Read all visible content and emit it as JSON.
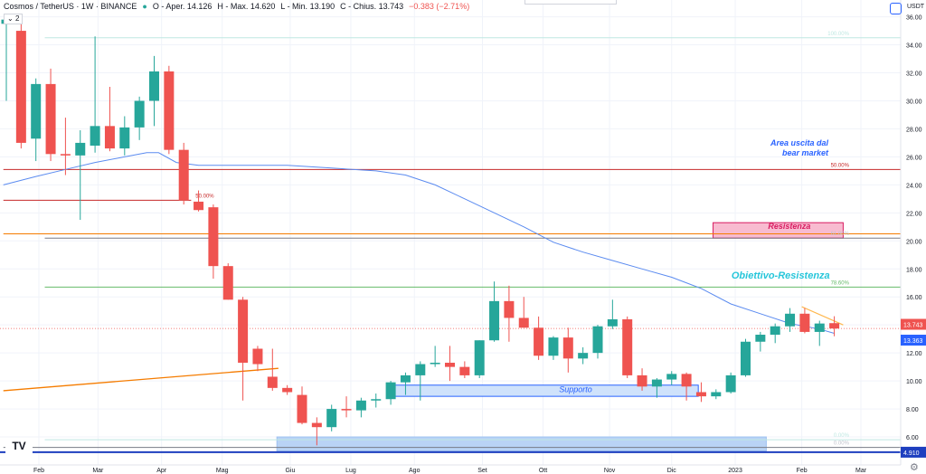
{
  "header": {
    "symbol": "Cosmos / TetherUS · 1W · BINANCE",
    "open": "O - Aper. 14.126",
    "high": "H - Max. 14.620",
    "low": "L - Min. 13.190",
    "close": "C - Chius. 13.743",
    "change": "−0.383 (−2.71%)",
    "indicator_count": "2",
    "logo": "TV",
    "settings_icon": "gear-icon",
    "toggle_icon": "square-icon"
  },
  "colors": {
    "up": "#26a69a",
    "down": "#ef5350",
    "ma": "#5b8bf0",
    "fib_red": "#c62828",
    "fib_green": "#66bb6a",
    "orange": "#f57c00",
    "accent": "#2962ff"
  },
  "chart_data": {
    "type": "candlestick",
    "title": "Cosmos / TetherUS · 1W · BINANCE",
    "ylabel": "USDT",
    "ylim": [
      4.0,
      37.2
    ],
    "y_ticks": [
      36.0,
      34.0,
      32.0,
      30.0,
      28.0,
      26.0,
      24.0,
      22.0,
      20.0,
      18.0,
      16.0,
      14.0,
      12.0,
      10.0,
      8.0,
      6.0
    ],
    "x_ticks": [
      {
        "label": "Feb",
        "week": 2.2
      },
      {
        "label": "Mar",
        "week": 6.2
      },
      {
        "label": "Apr",
        "week": 10.5
      },
      {
        "label": "Mag",
        "week": 14.6
      },
      {
        "label": "Giu",
        "week": 19.2
      },
      {
        "label": "Lug",
        "week": 23.3
      },
      {
        "label": "Ago",
        "week": 27.6
      },
      {
        "label": "Set",
        "week": 32.2
      },
      {
        "label": "Ott",
        "week": 36.3
      },
      {
        "label": "Nov",
        "week": 40.8
      },
      {
        "label": "Dic",
        "week": 45.0
      },
      {
        "label": "2023",
        "week": 49.3
      },
      {
        "label": "Feb",
        "week": 53.8
      },
      {
        "label": "Mar",
        "week": 57.8
      }
    ],
    "candles": [
      {
        "o": 35.5,
        "h": 36.0,
        "l": 30.0,
        "c": 35.8
      },
      {
        "o": 35.0,
        "h": 36.2,
        "l": 26.6,
        "c": 27.0
      },
      {
        "o": 27.3,
        "h": 31.6,
        "l": 25.7,
        "c": 31.2
      },
      {
        "o": 31.2,
        "h": 32.3,
        "l": 25.7,
        "c": 26.2
      },
      {
        "o": 26.2,
        "h": 28.8,
        "l": 24.7,
        "c": 26.1
      },
      {
        "o": 26.1,
        "h": 27.9,
        "l": 21.5,
        "c": 27.0
      },
      {
        "o": 26.8,
        "h": 34.6,
        "l": 26.3,
        "c": 28.2
      },
      {
        "o": 28.2,
        "h": 31.0,
        "l": 26.4,
        "c": 26.6
      },
      {
        "o": 26.6,
        "h": 28.9,
        "l": 26.1,
        "c": 28.1
      },
      {
        "o": 28.1,
        "h": 30.3,
        "l": 27.2,
        "c": 30.0
      },
      {
        "o": 30.0,
        "h": 33.2,
        "l": 28.2,
        "c": 32.1
      },
      {
        "o": 32.1,
        "h": 32.5,
        "l": 26.2,
        "c": 26.5
      },
      {
        "o": 26.5,
        "h": 27.0,
        "l": 22.6,
        "c": 22.9
      },
      {
        "o": 22.8,
        "h": 23.6,
        "l": 22.1,
        "c": 22.2
      },
      {
        "o": 22.4,
        "h": 22.6,
        "l": 17.3,
        "c": 18.2
      },
      {
        "o": 18.2,
        "h": 18.4,
        "l": 15.8,
        "c": 15.8
      },
      {
        "o": 15.8,
        "h": 16.0,
        "l": 8.6,
        "c": 11.3
      },
      {
        "o": 12.3,
        "h": 12.5,
        "l": 10.7,
        "c": 11.2
      },
      {
        "o": 10.3,
        "h": 12.3,
        "l": 9.3,
        "c": 9.5
      },
      {
        "o": 9.5,
        "h": 9.7,
        "l": 9.0,
        "c": 9.2
      },
      {
        "o": 9.0,
        "h": 9.6,
        "l": 6.9,
        "c": 7.0
      },
      {
        "o": 7.0,
        "h": 7.4,
        "l": 5.4,
        "c": 6.7
      },
      {
        "o": 6.7,
        "h": 8.3,
        "l": 6.4,
        "c": 8.0
      },
      {
        "o": 8.0,
        "h": 8.9,
        "l": 7.4,
        "c": 7.9
      },
      {
        "o": 7.9,
        "h": 8.8,
        "l": 7.4,
        "c": 8.6
      },
      {
        "o": 8.6,
        "h": 9.1,
        "l": 8.1,
        "c": 8.7
      },
      {
        "o": 8.7,
        "h": 10.0,
        "l": 8.3,
        "c": 9.9
      },
      {
        "o": 9.9,
        "h": 10.6,
        "l": 9.0,
        "c": 10.4
      },
      {
        "o": 10.4,
        "h": 11.4,
        "l": 8.6,
        "c": 11.2
      },
      {
        "o": 11.2,
        "h": 12.5,
        "l": 11.0,
        "c": 11.3
      },
      {
        "o": 11.3,
        "h": 12.5,
        "l": 10.0,
        "c": 11.0
      },
      {
        "o": 11.0,
        "h": 11.4,
        "l": 10.2,
        "c": 10.4
      },
      {
        "o": 10.4,
        "h": 12.9,
        "l": 10.2,
        "c": 12.9
      },
      {
        "o": 12.9,
        "h": 17.1,
        "l": 12.8,
        "c": 15.7
      },
      {
        "o": 15.7,
        "h": 16.8,
        "l": 12.8,
        "c": 14.5
      },
      {
        "o": 14.5,
        "h": 16.0,
        "l": 13.8,
        "c": 13.8
      },
      {
        "o": 13.8,
        "h": 14.6,
        "l": 11.5,
        "c": 11.8
      },
      {
        "o": 11.8,
        "h": 13.2,
        "l": 11.5,
        "c": 13.1
      },
      {
        "o": 13.1,
        "h": 13.8,
        "l": 10.6,
        "c": 11.6
      },
      {
        "o": 11.6,
        "h": 12.4,
        "l": 11.2,
        "c": 12.0
      },
      {
        "o": 12.0,
        "h": 14.0,
        "l": 11.6,
        "c": 13.9
      },
      {
        "o": 13.9,
        "h": 15.8,
        "l": 13.7,
        "c": 14.4
      },
      {
        "o": 14.4,
        "h": 14.6,
        "l": 10.2,
        "c": 10.4
      },
      {
        "o": 10.4,
        "h": 10.9,
        "l": 9.3,
        "c": 9.6
      },
      {
        "o": 9.6,
        "h": 10.2,
        "l": 8.8,
        "c": 10.1
      },
      {
        "o": 10.1,
        "h": 10.7,
        "l": 9.7,
        "c": 10.5
      },
      {
        "o": 10.5,
        "h": 10.6,
        "l": 8.6,
        "c": 9.6
      },
      {
        "o": 9.2,
        "h": 9.9,
        "l": 8.5,
        "c": 8.9
      },
      {
        "o": 8.9,
        "h": 9.4,
        "l": 8.7,
        "c": 9.2
      },
      {
        "o": 9.2,
        "h": 10.6,
        "l": 9.1,
        "c": 10.4
      },
      {
        "o": 10.4,
        "h": 13.0,
        "l": 10.3,
        "c": 12.8
      },
      {
        "o": 12.8,
        "h": 13.5,
        "l": 12.1,
        "c": 13.3
      },
      {
        "o": 13.3,
        "h": 14.1,
        "l": 12.7,
        "c": 13.9
      },
      {
        "o": 13.9,
        "h": 15.2,
        "l": 13.5,
        "c": 14.8
      },
      {
        "o": 14.8,
        "h": 15.2,
        "l": 13.4,
        "c": 13.5
      },
      {
        "o": 13.5,
        "h": 14.3,
        "l": 12.5,
        "c": 14.1
      },
      {
        "o": 14.126,
        "h": 14.62,
        "l": 13.19,
        "c": 13.743
      }
    ],
    "moving_average": {
      "points": [
        {
          "week": -0.2,
          "value": 24.0
        },
        {
          "week": 2,
          "value": 24.6
        },
        {
          "week": 4,
          "value": 25.1
        },
        {
          "week": 6,
          "value": 25.6
        },
        {
          "week": 8,
          "value": 26.0
        },
        {
          "week": 9.5,
          "value": 26.3
        },
        {
          "week": 10.3,
          "value": 26.3
        },
        {
          "week": 11.5,
          "value": 25.6
        },
        {
          "week": 13,
          "value": 25.4
        },
        {
          "week": 16,
          "value": 25.4
        },
        {
          "week": 19,
          "value": 25.4
        },
        {
          "week": 22,
          "value": 25.2
        },
        {
          "week": 25,
          "value": 25.0
        },
        {
          "week": 27,
          "value": 24.7
        },
        {
          "week": 29,
          "value": 24.0
        },
        {
          "week": 31,
          "value": 23.0
        },
        {
          "week": 33,
          "value": 22.0
        },
        {
          "week": 35,
          "value": 21.0
        },
        {
          "week": 37,
          "value": 19.9
        },
        {
          "week": 39,
          "value": 19.2
        },
        {
          "week": 41,
          "value": 18.6
        },
        {
          "week": 43,
          "value": 18.0
        },
        {
          "week": 45,
          "value": 17.4
        },
        {
          "week": 47,
          "value": 16.6
        },
        {
          "week": 49,
          "value": 15.5
        },
        {
          "week": 51,
          "value": 14.8
        },
        {
          "week": 53,
          "value": 14.1
        },
        {
          "week": 55,
          "value": 13.7
        },
        {
          "week": 56,
          "value": 13.4
        }
      ]
    },
    "fib_lines": [
      {
        "value": 34.5,
        "start_week": 2.6,
        "color": "#bfe8e2",
        "label": "100.00%",
        "label_color": "#bfe8e2",
        "label_week": 57.0
      },
      {
        "value": 25.1,
        "start_week": -0.2,
        "color": "#c62828",
        "label": "50.00%",
        "label_color": "#c62828",
        "label_week": 57.0
      },
      {
        "value": 22.9,
        "start_week": -0.2,
        "end_week": 12.5,
        "color": "#c62828",
        "label": "50.00%",
        "label_color": "#c62828",
        "label_week": 12.8
      },
      {
        "value": 20.5,
        "start_week": -0.2,
        "color": "#f57c00",
        "label": "",
        "label_color": "#f57c00",
        "label_week": 57.0
      },
      {
        "value": 20.2,
        "start_week": 2.6,
        "color": "#787b86",
        "label": "61.80%",
        "label_color": "#c0c3cc",
        "label_week": 57.0
      },
      {
        "value": 16.7,
        "start_week": 2.6,
        "color": "#66bb6a",
        "label": "78.60%",
        "label_color": "#66bb6a",
        "label_week": 57.0
      },
      {
        "value": 5.8,
        "start_week": 2.6,
        "color": "#bfe8e2",
        "label": "0.00%",
        "label_color": "#bfe8e2",
        "label_week": 57.0
      },
      {
        "value": 5.25,
        "start_week": -0.2,
        "color": "#787b86",
        "label": "0.00%",
        "label_color": "#c0c3cc",
        "label_week": 57.0
      }
    ],
    "orange_trendline": {
      "from": {
        "week": -0.2,
        "value": 9.3
      },
      "to": {
        "week": 18.4,
        "value": 10.9
      }
    },
    "orange_short_line": {
      "from": {
        "week": 53.8,
        "value": 15.3
      },
      "to": {
        "week": 56.6,
        "value": 14.0
      }
    },
    "support_line": {
      "value": 4.91,
      "label": "4.910"
    },
    "current_price": {
      "value": 13.743,
      "label": "13.743"
    },
    "ma_price": {
      "value": 13.363,
      "label": "13.363"
    },
    "annotations": [
      {
        "text": "Area uscita dal",
        "week": 55.6,
        "value": 26.8,
        "color": "#2962ff",
        "style": "italic-bold",
        "size": 9
      },
      {
        "text": "bear market",
        "week": 55.6,
        "value": 26.1,
        "color": "#2962ff",
        "style": "italic-bold",
        "size": 9
      },
      {
        "text": "Resistenza",
        "week": 54.4,
        "value": 20.85,
        "color": "#d81b60",
        "style": "italic-bold",
        "size": 9
      },
      {
        "text": "Obiettivo-Resistenza",
        "week": 55.7,
        "value": 17.3,
        "color": "#26c6da",
        "style": "italic-bold",
        "size": 11
      },
      {
        "text": "Supporto",
        "week": 38.5,
        "value": 9.2,
        "color": "#2962ff",
        "style": "italic",
        "size": 9
      }
    ],
    "zones": [
      {
        "name": "resistenza-zone",
        "w0": 47.8,
        "w1": 56.6,
        "v0": 20.2,
        "v1": 21.3,
        "fill": "#f8bbd0",
        "stroke": "#d81b60"
      },
      {
        "name": "supporto-zone",
        "w0": 26.3,
        "w1": 46.8,
        "v0": 8.9,
        "v1": 9.7,
        "fill": "#cfe2fb",
        "stroke": "#2962ff"
      },
      {
        "name": "bottom-zone",
        "w0": 18.3,
        "w1": 51.4,
        "v0": 5.0,
        "v1": 6.0,
        "fill": "#b9d3f5",
        "stroke": "#9ec1f0"
      }
    ],
    "grid": true,
    "legend": "none"
  }
}
